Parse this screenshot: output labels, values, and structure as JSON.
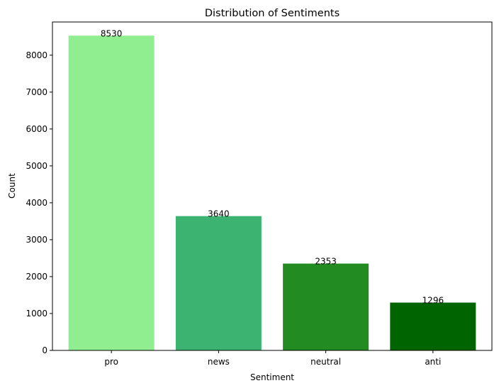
{
  "chart_data": {
    "type": "bar",
    "title": "Distribution of Sentiments",
    "xlabel": "Sentiment",
    "ylabel": "Count",
    "categories": [
      "pro",
      "news",
      "neutral",
      "anti"
    ],
    "values": [
      8530,
      3640,
      2353,
      1296
    ],
    "data_labels": [
      "8530",
      "3640",
      "2353",
      "1296"
    ],
    "colors": [
      "#90ee90",
      "#3cb371",
      "#228b22",
      "#006400"
    ],
    "ylim": [
      0,
      8900
    ],
    "yticks": [
      0,
      1000,
      2000,
      3000,
      4000,
      5000,
      6000,
      7000,
      8000
    ],
    "grid": false,
    "legend": "none"
  }
}
